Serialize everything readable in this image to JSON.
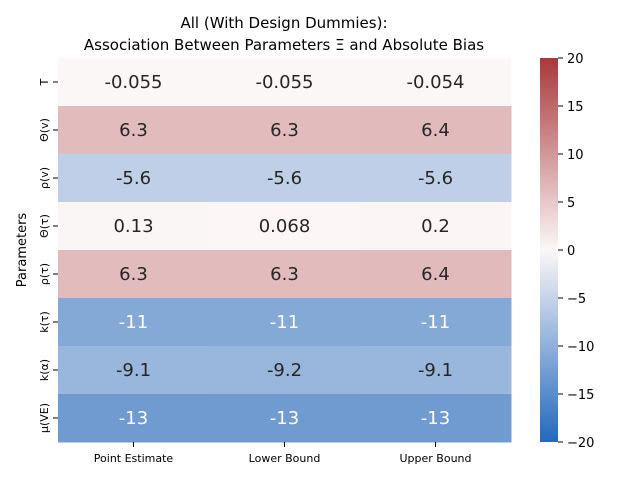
{
  "chart_data": {
    "type": "heatmap",
    "title": "All (With Design Dummies):",
    "subtitle": "Association Between Parameters Ξ and Absolute Bias",
    "xlabel": "",
    "ylabel": "Parameters",
    "columns": [
      "Point Estimate",
      "Lower Bound",
      "Upper Bound"
    ],
    "rows": [
      "T",
      "Θ(v)",
      "ρ(v)",
      "Θ(τ)",
      "ρ(τ)",
      "k(τ)",
      "k(α)",
      "μ(VE)"
    ],
    "values": [
      [
        -0.055,
        -0.055,
        -0.054
      ],
      [
        6.3,
        6.3,
        6.4
      ],
      [
        -5.6,
        -5.6,
        -5.6
      ],
      [
        0.13,
        0.068,
        0.2
      ],
      [
        6.3,
        6.3,
        6.4
      ],
      [
        -11,
        -11,
        -11
      ],
      [
        -9.1,
        -9.2,
        -9.1
      ],
      [
        -13,
        -13,
        -13
      ]
    ],
    "labels": [
      [
        "-0.055",
        "-0.055",
        "-0.054"
      ],
      [
        "6.3",
        "6.3",
        "6.4"
      ],
      [
        "-5.6",
        "-5.6",
        "-5.6"
      ],
      [
        "0.13",
        "0.068",
        "0.2"
      ],
      [
        "6.3",
        "6.3",
        "6.4"
      ],
      [
        "-11",
        "-11",
        "-11"
      ],
      [
        "-9.1",
        "-9.2",
        "-9.1"
      ],
      [
        "-13",
        "-13",
        "-13"
      ]
    ],
    "colorbar": {
      "range": [
        -20,
        20
      ],
      "ticks": [
        -20,
        -15,
        -10,
        -5,
        0,
        5,
        10,
        15,
        20
      ],
      "tick_labels": [
        "−20",
        "−15",
        "−10",
        "−5",
        "0",
        "5",
        "10",
        "15",
        "20"
      ],
      "colormap": "vlag",
      "low_color": "#2369bd",
      "mid_color": "#fcf7f7",
      "high_color": "#a9373b"
    }
  }
}
